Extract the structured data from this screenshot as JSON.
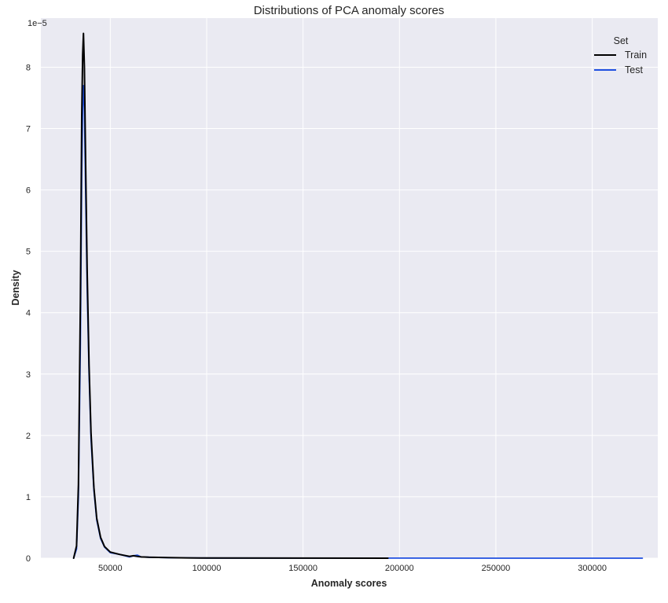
{
  "chart_data": {
    "type": "line",
    "title": "Distributions of PCA anomaly scores",
    "xlabel": "Anomaly scores",
    "ylabel": "Density",
    "y_offset_label": "1e−5",
    "xlim": [
      14000,
      334000
    ],
    "ylim": [
      0,
      8.8
    ],
    "x_ticks": [
      50000,
      100000,
      150000,
      200000,
      250000,
      300000
    ],
    "x_tick_labels": [
      "50000",
      "100000",
      "150000",
      "200000",
      "250000",
      "300000"
    ],
    "y_ticks": [
      0,
      1,
      2,
      3,
      4,
      5,
      6,
      7,
      8
    ],
    "y_tick_labels": [
      "0",
      "1",
      "2",
      "3",
      "4",
      "5",
      "6",
      "7",
      "8"
    ],
    "grid": true,
    "background": "#eaeaf2",
    "legend": {
      "title": "Set",
      "position": "top-right",
      "entries": [
        {
          "label": "Train",
          "color": "#000000"
        },
        {
          "label": "Test",
          "color": "#1f4fe0"
        }
      ]
    },
    "series": [
      {
        "name": "Test",
        "color": "#1f4fe0",
        "x": [
          31000,
          32500,
          33500,
          34500,
          35200,
          35700,
          36100,
          36600,
          37200,
          38000,
          39000,
          40000,
          41500,
          43000,
          45000,
          47000,
          50000,
          55000,
          60000,
          62000,
          64000,
          66000,
          70000,
          80000,
          90000,
          100000,
          150000,
          200000,
          250000,
          300000,
          326000
        ],
        "y": [
          0.0,
          0.15,
          1.0,
          3.5,
          6.2,
          7.35,
          7.7,
          7.3,
          6.0,
          4.4,
          3.0,
          1.95,
          1.1,
          0.62,
          0.32,
          0.18,
          0.09,
          0.06,
          0.02,
          0.04,
          0.05,
          0.02,
          0.015,
          0.008,
          0.005,
          0.002,
          0.001,
          0.0008,
          0.0005,
          0.0003,
          0.0
        ]
      },
      {
        "name": "Train",
        "color": "#000000",
        "x": [
          31000,
          32500,
          33500,
          34500,
          35200,
          35700,
          36100,
          36600,
          37200,
          38000,
          39000,
          40000,
          41500,
          43000,
          45000,
          47000,
          50000,
          55000,
          60000,
          62000,
          64000,
          66000,
          70000,
          80000,
          90000,
          100000,
          150000,
          194000
        ],
        "y": [
          0.0,
          0.2,
          1.2,
          4.2,
          7.2,
          8.2,
          8.55,
          8.0,
          6.5,
          4.7,
          3.15,
          2.05,
          1.15,
          0.65,
          0.34,
          0.19,
          0.1,
          0.06,
          0.03,
          0.04,
          0.03,
          0.02,
          0.015,
          0.01,
          0.005,
          0.003,
          0.001,
          0.0
        ]
      }
    ]
  }
}
